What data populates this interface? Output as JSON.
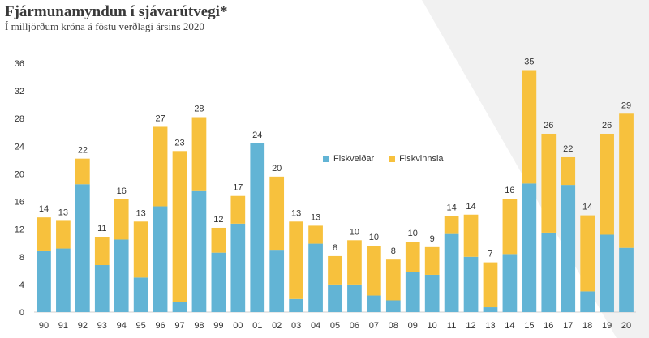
{
  "title": "Fjármunamyndun í sjávarútvegi*",
  "subtitle": "Í milljörðum króna á föstu verðlagi ársins 2020",
  "colors": {
    "fiskveidar": "#62b4d5",
    "fiskvinnsla": "#f7c13d"
  },
  "chart_data": {
    "type": "bar",
    "stacked": true,
    "categories": [
      "90",
      "91",
      "92",
      "93",
      "94",
      "95",
      "96",
      "97",
      "98",
      "99",
      "00",
      "01",
      "02",
      "03",
      "04",
      "05",
      "06",
      "07",
      "08",
      "09",
      "10",
      "11",
      "12",
      "13",
      "14",
      "15",
      "16",
      "17",
      "18",
      "19",
      "20"
    ],
    "series": [
      {
        "name": "Fiskveiðar",
        "color": "#62b4d5",
        "values": [
          8.8,
          9.2,
          18.5,
          6.8,
          10.5,
          5.0,
          15.3,
          1.5,
          17.5,
          8.6,
          12.8,
          24.4,
          8.9,
          1.9,
          9.9,
          4.0,
          4.0,
          2.4,
          1.7,
          5.8,
          5.4,
          11.3,
          8.0,
          0.7,
          8.4,
          18.6,
          11.5,
          18.4,
          3.0,
          11.2,
          9.3
        ]
      },
      {
        "name": "Fiskvinnsla",
        "color": "#f7c13d",
        "values": [
          4.9,
          4.0,
          3.7,
          4.1,
          5.8,
          8.1,
          11.5,
          21.8,
          10.7,
          3.6,
          4.0,
          0.0,
          10.7,
          11.2,
          2.6,
          4.1,
          6.4,
          7.2,
          5.9,
          4.4,
          4.0,
          2.6,
          6.1,
          6.5,
          8.0,
          16.4,
          14.3,
          4.0,
          11.0,
          14.6,
          19.4
        ]
      }
    ],
    "totals": [
      "14",
      "13",
      "22",
      "11",
      "16",
      "13",
      "27",
      "23",
      "28",
      "12",
      "17",
      "24",
      "20",
      "13",
      "13",
      "8",
      "10",
      "10",
      "8",
      "10",
      "9",
      "14",
      "14",
      "7",
      "16",
      "35",
      "26",
      "22",
      "14",
      "26",
      "29"
    ],
    "yticks": [
      "0",
      "4",
      "8",
      "12",
      "16",
      "20",
      "24",
      "28",
      "32",
      "36"
    ],
    "ylim": [
      0,
      36
    ],
    "legend_position": "center"
  }
}
